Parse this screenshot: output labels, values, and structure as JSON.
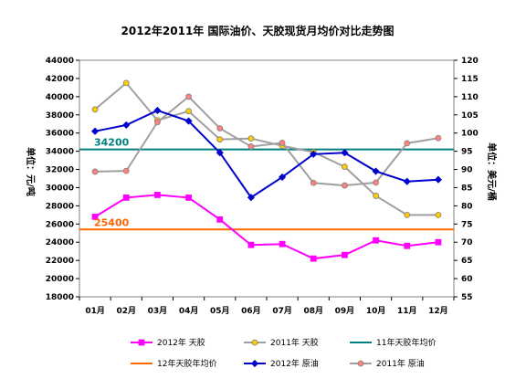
{
  "chart_data": {
    "type": "line",
    "title": "2012年2011年 国际油价、天胶现货月均价对比走势图",
    "ylabel_left": "单位：元/吨",
    "ylabel_right": "单位：美元/桶",
    "categories": [
      "01月",
      "02月",
      "03月",
      "04月",
      "05月",
      "06月",
      "07月",
      "08月",
      "09月",
      "10月",
      "11月",
      "12月"
    ],
    "ylim_left": [
      18000,
      44000
    ],
    "ylim_right": [
      55,
      120
    ],
    "yticks_left": [
      "18000",
      "20000",
      "22000",
      "24000",
      "26000",
      "28000",
      "30000",
      "32000",
      "34000",
      "36000",
      "38000",
      "40000",
      "42000",
      "44000"
    ],
    "yticks_right": [
      "55",
      "60",
      "65",
      "70",
      "75",
      "80",
      "85",
      "90",
      "95",
      "100",
      "105",
      "110",
      "115",
      "120"
    ],
    "grid": false,
    "legend_position": "bottom",
    "series": [
      {
        "name": "2012年 天胶",
        "axis": "left",
        "color": "#ff00ff",
        "marker": "square",
        "markerFill": "#ff00ff",
        "values": [
          26800,
          28900,
          29200,
          28900,
          26500,
          23700,
          23800,
          22200,
          22600,
          24200,
          23600,
          24000
        ]
      },
      {
        "name": "2011年 天胶",
        "axis": "left",
        "color": "#a0a0a0",
        "marker": "circle",
        "markerFill": "#ffcc00",
        "values": [
          38600,
          41500,
          37400,
          38400,
          35300,
          35400,
          34600,
          33900,
          32300,
          29100,
          27000,
          27000
        ]
      },
      {
        "name": "11年天胶年均价",
        "axis": "left",
        "color": "#008080",
        "marker": "none",
        "values": [
          34200,
          34200,
          34200,
          34200,
          34200,
          34200,
          34200,
          34200,
          34200,
          34200,
          34200,
          34200
        ]
      },
      {
        "name": "12年天胶年均价",
        "axis": "left",
        "color": "#ff6600",
        "marker": "none",
        "values": [
          25400,
          25400,
          25400,
          25400,
          25400,
          25400,
          25400,
          25400,
          25400,
          25400,
          25400,
          25400
        ]
      },
      {
        "name": "2012年 原油",
        "axis": "right",
        "color": "#0000cc",
        "marker": "diamond",
        "markerFill": "#0000cc",
        "values": [
          100.5,
          102.2,
          106.2,
          103.3,
          94.6,
          82.3,
          87.9,
          94.2,
          94.6,
          89.5,
          86.7,
          87.2
        ]
      },
      {
        "name": "2011年 原油",
        "axis": "right",
        "color": "#a0a0a0",
        "marker": "circle",
        "markerFill": "#ff8080",
        "values": [
          89.4,
          89.6,
          103.0,
          110.0,
          101.3,
          96.3,
          97.3,
          86.3,
          85.6,
          86.4,
          97.2,
          98.6
        ]
      }
    ],
    "annotations": [
      {
        "text": "34200",
        "color": "#008080",
        "series": "11年天胶年均价"
      },
      {
        "text": "25400",
        "color": "#ff6600",
        "series": "12年天胶年均价"
      }
    ]
  }
}
